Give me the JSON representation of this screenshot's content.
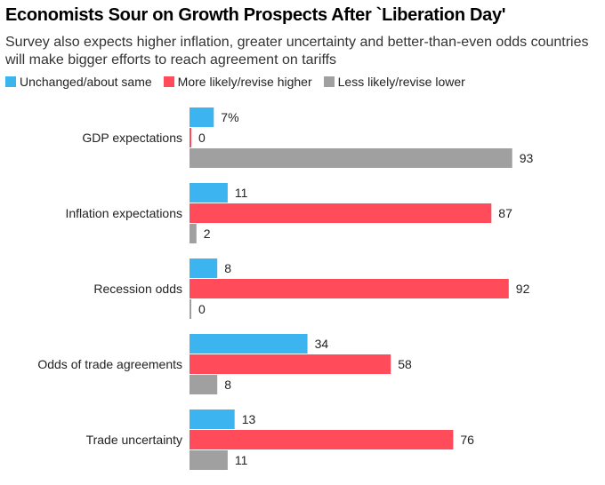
{
  "title": "Economists Sour on Growth Prospects After `Liberation Day'",
  "subtitle": "Survey also expects higher inflation, greater uncertainty and better-than-even odds countries will make bigger efforts to reach agreement on tariffs",
  "legend": [
    {
      "label": "Unchanged/about same",
      "color": "#3CB4F0"
    },
    {
      "label": "More likely/revise higher",
      "color": "#FF4B5A"
    },
    {
      "label": "Less likely/revise lower",
      "color": "#A0A0A0"
    }
  ],
  "chart_data": {
    "type": "bar",
    "orientation": "horizontal",
    "title": "Economists Sour on Growth Prospects After `Liberation Day'",
    "categories": [
      "GDP expectations",
      "Inflation expectations",
      "Recession odds",
      "Odds of trade agreements",
      "Trade uncertainty"
    ],
    "series": [
      {
        "name": "Unchanged/about same",
        "color": "#3CB4F0",
        "values": [
          7,
          11,
          8,
          34,
          13
        ],
        "labels": [
          "7%",
          "11",
          "8",
          "34",
          "13"
        ]
      },
      {
        "name": "More likely/revise higher",
        "color": "#FF4B5A",
        "values": [
          0,
          87,
          92,
          58,
          76
        ],
        "labels": [
          "0",
          "87",
          "92",
          "58",
          "76"
        ]
      },
      {
        "name": "Less likely/revise lower",
        "color": "#A0A0A0",
        "values": [
          93,
          2,
          0,
          8,
          11
        ],
        "labels": [
          "93",
          "2",
          "0",
          "8",
          "11"
        ]
      }
    ],
    "xlim": [
      0,
      100
    ],
    "unit": "%",
    "grid": false,
    "legend_position": "top-left"
  }
}
